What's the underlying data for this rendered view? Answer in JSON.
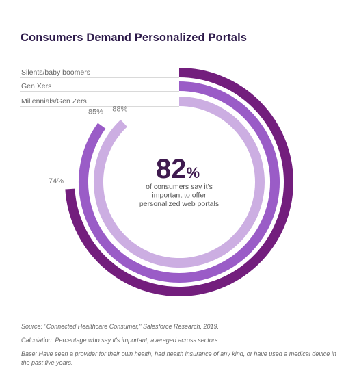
{
  "colors": {
    "title": "#2d1a4a",
    "text": "#666666",
    "big_stat": "#3f1a4f"
  },
  "chart_data": {
    "type": "radial-bar",
    "title": "Consumers Demand Personalized Portals",
    "unit": "%",
    "series": [
      {
        "name": "Silents/baby boomers",
        "value": 74,
        "label": "74%",
        "color": "#731e7d"
      },
      {
        "name": "Gen Xers",
        "value": 85,
        "label": "85%",
        "color": "#9a5cc7"
      },
      {
        "name": "Millennials/Gen Zers",
        "value": 88,
        "label": "88%",
        "color": "#ccaee2"
      }
    ],
    "center_stat": {
      "value": "82",
      "unit": "%",
      "caption": [
        "of consumers say it's",
        "important to offer",
        "personalized web portals"
      ]
    }
  },
  "footnotes": {
    "source": "Source: \"Connected Healthcare Consumer,\" Salesforce Research, 2019.",
    "calculation": "Calculation: Percentage who say it's important, averaged across sectors.",
    "base": "Base: Have seen a provider for their own health, had health insurance of any kind, or have used a medical device in the past five years."
  }
}
